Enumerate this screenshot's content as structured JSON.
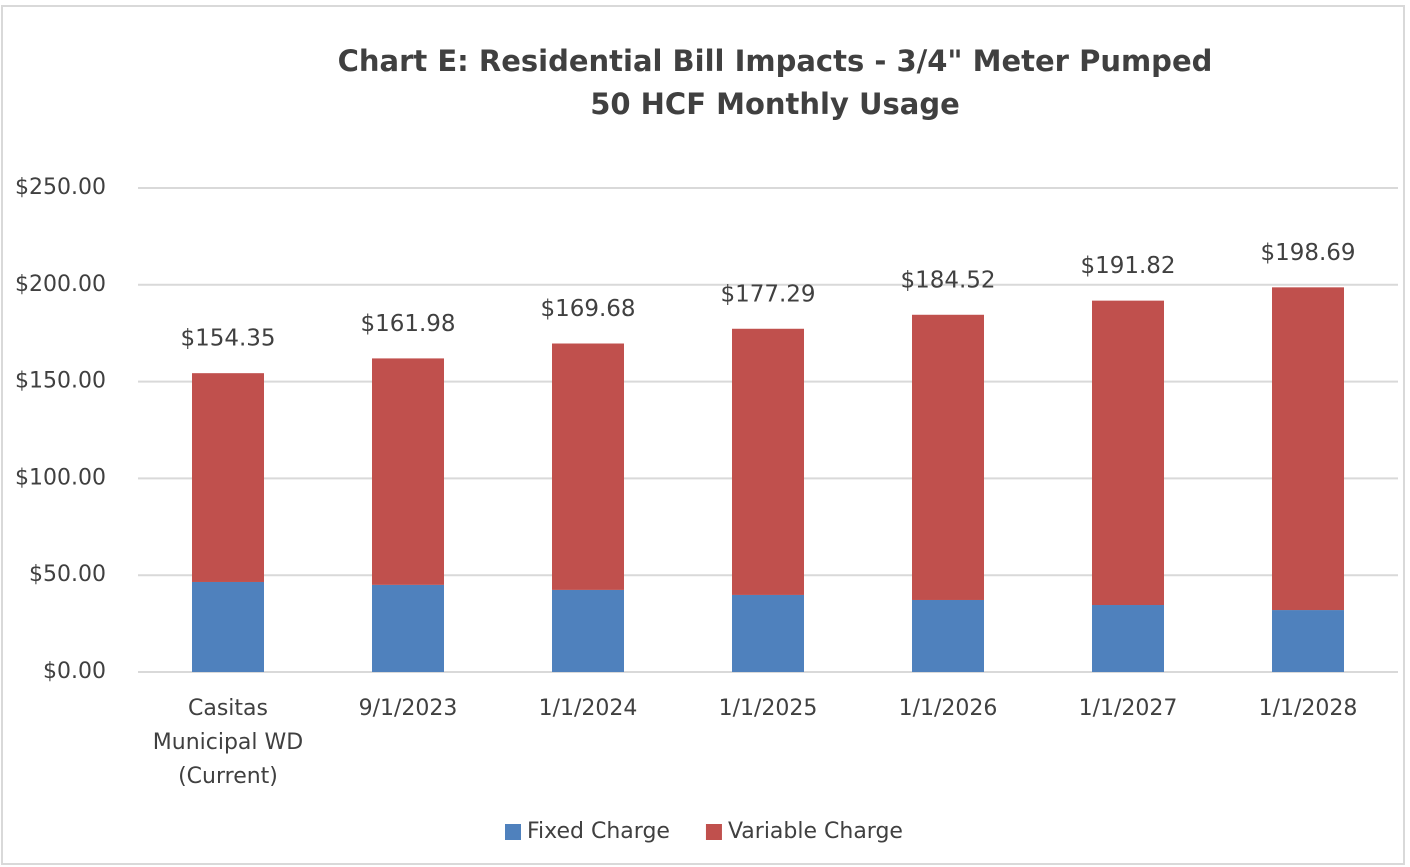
{
  "chart_data": {
    "type": "stacked_bar",
    "title": "Chart E: Residential Bill Impacts - 3/4\" Meter Pumped",
    "subtitle": "50 HCF Monthly Usage",
    "categories": [
      "Casitas Municipal WD (Current)",
      "9/1/2023",
      "1/1/2024",
      "1/1/2025",
      "1/1/2026",
      "1/1/2027",
      "1/1/2028"
    ],
    "series": [
      {
        "name": "Fixed Charge",
        "color": "#4f81bd",
        "values": [
          46.5,
          45.0,
          42.4,
          39.8,
          37.2,
          34.6,
          32.0
        ]
      },
      {
        "name": "Variable Charge",
        "color": "#c0504d",
        "values": [
          107.85,
          116.98,
          127.28,
          137.49,
          147.32,
          157.22,
          166.69
        ]
      }
    ],
    "total_labels": [
      "$154.35",
      "$161.98",
      "$169.68",
      "$177.29",
      "$184.52",
      "$191.82",
      "$198.69"
    ],
    "ylim": [
      0,
      250
    ],
    "yticks": [
      {
        "value": 0,
        "label": "$0.00"
      },
      {
        "value": 50,
        "label": "$50.00"
      },
      {
        "value": 100,
        "label": "$100.00"
      },
      {
        "value": 150,
        "label": "$150.00"
      },
      {
        "value": 200,
        "label": "$200.00"
      },
      {
        "value": 250,
        "label": "$250.00"
      }
    ],
    "grid": true,
    "legend": "bottom"
  }
}
